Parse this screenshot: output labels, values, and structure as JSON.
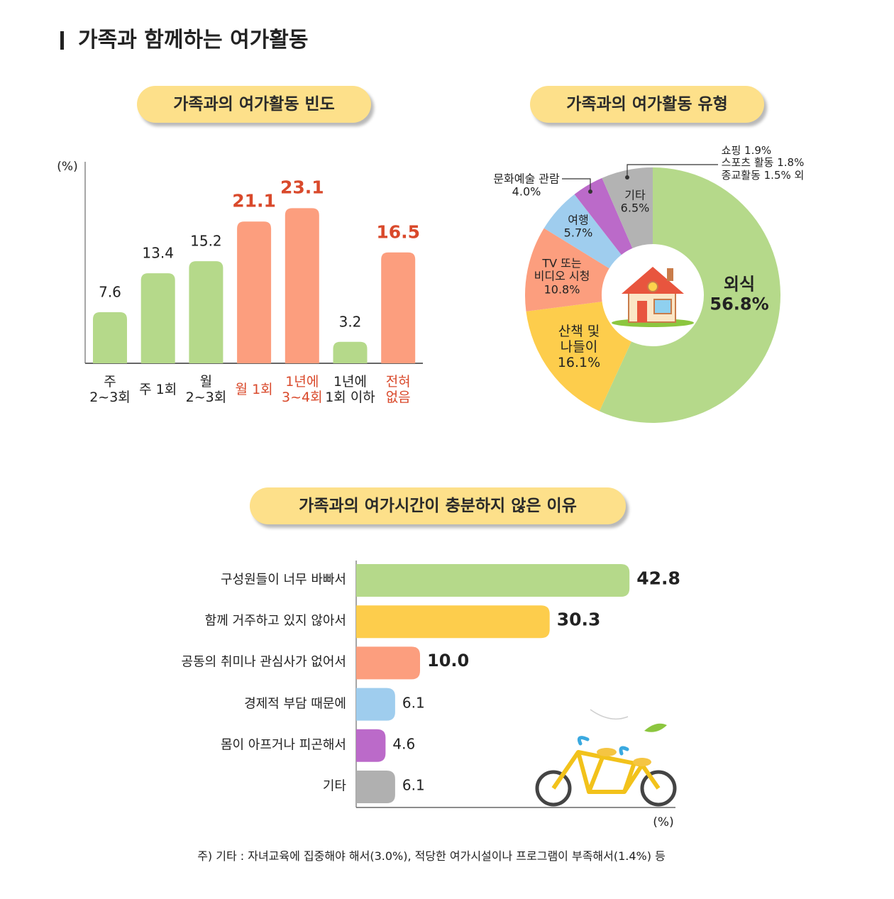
{
  "title": "가족과 함께하는 여가활동",
  "chart_data": [
    {
      "type": "bar",
      "title": "가족과의 여가활동 빈도",
      "y_label": "(%)",
      "categories": [
        "주\n2~3회",
        "주 1회",
        "월\n2~3회",
        "월 1회",
        "1년에\n3~4회",
        "1년에\n1회 이하",
        "전혀\n없음"
      ],
      "values": [
        7.6,
        13.4,
        15.2,
        21.1,
        23.1,
        3.2,
        16.5
      ],
      "colors": [
        "#b5d98a",
        "#b5d98a",
        "#b5d98a",
        "#fc9e7e",
        "#fc9e7e",
        "#b5d98a",
        "#fc9e7e"
      ],
      "label_colors": [
        "#222222",
        "#222222",
        "#222222",
        "#d9492b",
        "#d9492b",
        "#222222",
        "#d9492b"
      ],
      "ylim": [
        0,
        30
      ]
    },
    {
      "type": "donut",
      "title": "가족과의 여가활동 유형",
      "categories": [
        "외식",
        "산책 및\n나들이",
        "TV 또는\n비디오 시청",
        "여행",
        "문화예술 관람",
        "기타"
      ],
      "values": [
        56.8,
        16.1,
        10.8,
        5.7,
        4.0,
        6.5
      ],
      "value_labels": [
        "56.8%",
        "16.1%",
        "10.8%",
        "5.7%",
        "4.0%",
        "6.5%"
      ],
      "colors": [
        "#b5d98a",
        "#fdcd4c",
        "#fc9e7e",
        "#9fcdee",
        "#bb6ac9",
        "#b3b3b3"
      ],
      "annotation": "쇼핑 1.9%\n스포츠 활동 1.8%\n종교활동 1.5% 외"
    },
    {
      "type": "hbar",
      "title": "가족과의 여가시간이 충분하지 않은 이유",
      "x_label": "(%)",
      "categories": [
        "구성원들이 너무 바빠서",
        "함께 거주하고 있지 않아서",
        "공동의 취미나 관심사가 없어서",
        "경제적 부담 때문에",
        "몸이 아프거나 피곤해서",
        "기타"
      ],
      "values": [
        42.8,
        30.3,
        10.0,
        6.1,
        4.6,
        6.1
      ],
      "value_labels": [
        "42.8",
        "30.3",
        "10.0",
        "6.1",
        "4.6",
        "6.1"
      ],
      "colors": [
        "#b5d98a",
        "#fdcd4c",
        "#fc9e7e",
        "#9fcdee",
        "#bb6ac9",
        "#b0b0b0"
      ],
      "xlim": [
        0,
        50
      ]
    }
  ],
  "note": "주) 기타 : 자녀교육에 집중해야 해서(3.0%), 적당한 여가시설이나 프로그램이 부족해서(1.4%) 등"
}
